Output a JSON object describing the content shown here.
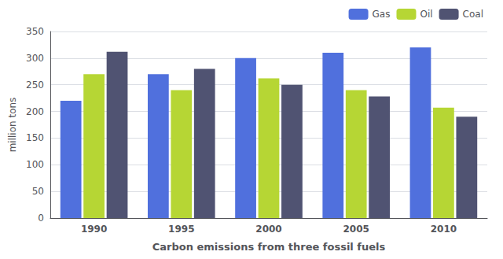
{
  "chart_data": {
    "type": "bar",
    "xlabel": "Carbon emissions from three fossil fuels",
    "ylabel": "million tons",
    "categories": [
      "1990",
      "1995",
      "2000",
      "2005",
      "2010"
    ],
    "series": [
      {
        "name": "Gas",
        "values": [
          220,
          270,
          300,
          310,
          320
        ]
      },
      {
        "name": "Oil",
        "values": [
          270,
          240,
          262,
          240,
          207
        ]
      },
      {
        "name": "Coal",
        "values": [
          312,
          280,
          250,
          228,
          190
        ]
      }
    ],
    "ylim": [
      0,
      350
    ],
    "yticks": [
      0,
      50,
      100,
      150,
      200,
      250,
      300,
      350
    ],
    "grid": true,
    "legend": "upper right"
  }
}
